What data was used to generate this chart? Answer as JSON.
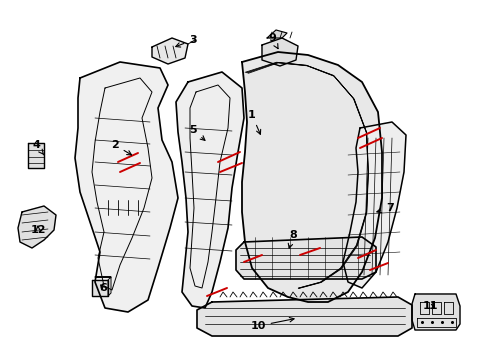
{
  "bg_color": "#ffffff",
  "line_color": "#000000",
  "red_color": "#cc0000",
  "figsize": [
    4.89,
    3.6
  ],
  "dpi": 100
}
